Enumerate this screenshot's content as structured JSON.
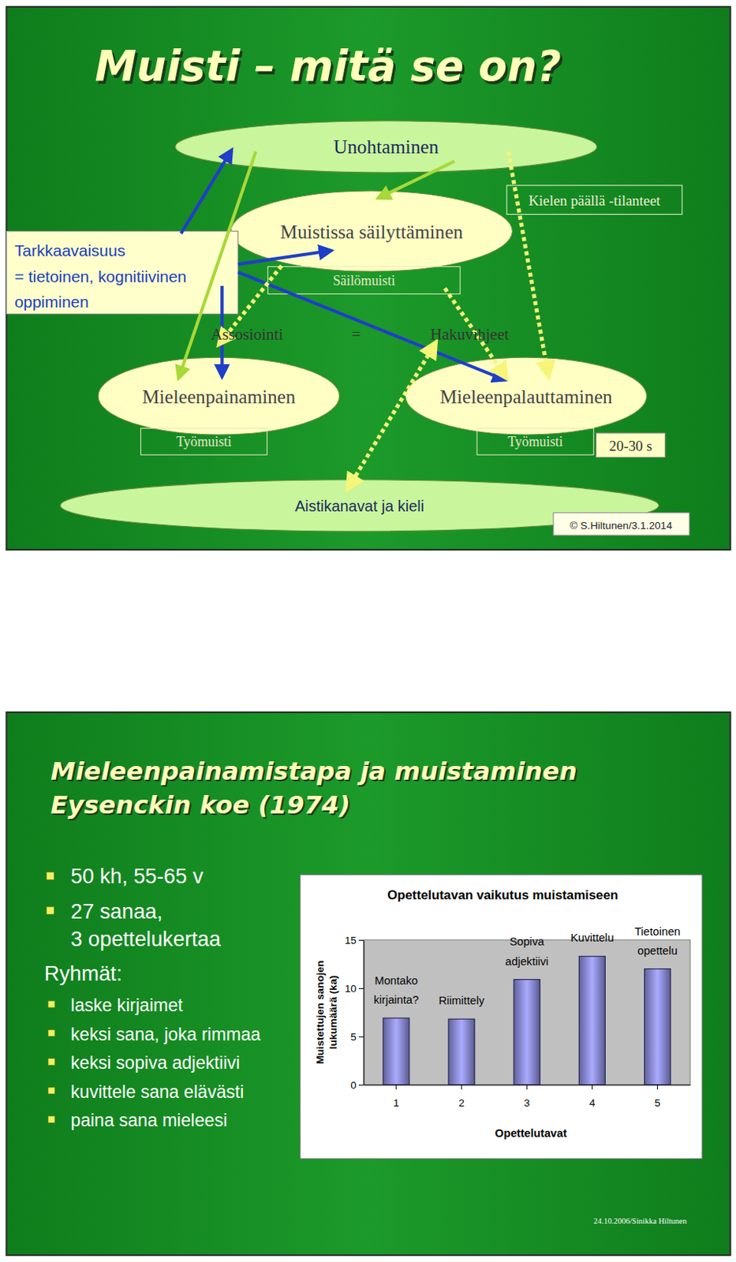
{
  "diagram": {
    "title": "Muisti – mitä se on?",
    "ellipses": [
      "Unohtaminen",
      "Muistissa säilyttäminen",
      "Mieleenpainaminen",
      "Mieleenpalauttaminen",
      "Aistikanavat ja kieli"
    ],
    "boxes": [
      "Säilömuisti",
      "Kielen päällä -tilanteet",
      "Työmuisti",
      "Työmuisti",
      "20-30 s"
    ],
    "attention": [
      "Tarkkaavaisuus",
      "= tietoinen, kognitiivinen",
      "oppiminen"
    ],
    "link_labels": [
      "Assosiointi",
      "=",
      "Hakuvihjeet"
    ],
    "credit": "© S.Hiltunen/3.1.2014"
  },
  "slide2": {
    "title": [
      "Mieleenpainamistapa ja muistaminen",
      "Eysenckin koe (1974)"
    ],
    "bullets": [
      [
        "50 kh, 55-65 v"
      ],
      [
        "27 sanaa,",
        "3 opettelukertaa"
      ]
    ],
    "groups_heading": "Ryhmät:",
    "groups": [
      "laske kirjaimet",
      "keksi sana, joka rimmaa",
      "keksi sopiva adjektiivi",
      "kuvittele sana elävästi",
      "paina sana mieleesi"
    ],
    "footer": "24.10.2006/Sinikka Hiltunen"
  },
  "chart_data": {
    "type": "bar",
    "title": "Opettelutavan vaikutus muistamiseen",
    "x_label": "Opettelutavat",
    "y_label": "Muistettujen sanojen lukumäärä (ka)",
    "categories": [
      "1",
      "2",
      "3",
      "4",
      "5"
    ],
    "values": [
      6.9,
      6.8,
      10.9,
      13.3,
      12.0
    ],
    "annotations": [
      "Montako kirjainta?",
      "Riimittely",
      "Sopiva adjektiivi",
      "Kuvittelu",
      "Tietoinen opettelu"
    ],
    "color": "#8a8ae0",
    "ylim": [
      0,
      15
    ],
    "yticks": [
      0,
      5,
      10,
      15
    ],
    "grid": false
  }
}
